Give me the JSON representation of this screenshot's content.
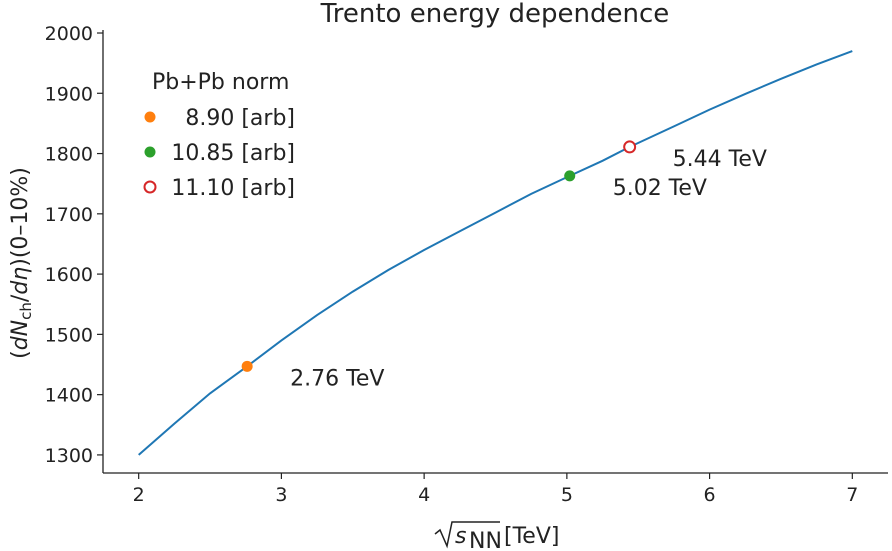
{
  "chart_data": {
    "type": "line",
    "title": "Trento energy dependence",
    "xlabel": "[TeV]",
    "xlabel_symbol": "s",
    "xlabel_subscript": "NN",
    "ylabel": "(dNch/dη)(0–10%)",
    "ylabel_parts": {
      "open": "(",
      "d1": "d",
      "N": "N",
      "sub": "ch",
      "slash": "/",
      "d2": "d",
      "eta": "η",
      "close": ")(0–10%)"
    },
    "xlim": [
      1.75,
      7.25
    ],
    "ylim": [
      1270,
      2005
    ],
    "xticks": [
      2,
      3,
      4,
      5,
      6,
      7
    ],
    "yticks": [
      1300,
      1400,
      1500,
      1600,
      1700,
      1800,
      1900,
      2000
    ],
    "series": [
      {
        "kind": "curve",
        "color": "#1f77b4",
        "x": [
          2.0,
          2.25,
          2.5,
          2.76,
          3.0,
          3.25,
          3.5,
          3.75,
          4.0,
          4.25,
          4.5,
          4.75,
          5.02,
          5.25,
          5.44,
          5.75,
          6.0,
          6.25,
          6.5,
          6.75,
          7.0
        ],
        "y": [
          1300,
          1352,
          1402,
          1447,
          1490,
          1532,
          1571,
          1607,
          1640,
          1671,
          1702,
          1733,
          1763,
          1788,
          1811,
          1845,
          1873,
          1899,
          1924,
          1948,
          1970
        ]
      }
    ],
    "points": [
      {
        "x": 2.76,
        "y": 1447,
        "color": "#ff7f0e",
        "filled": true,
        "annotation": "2.76 TeV"
      },
      {
        "x": 5.02,
        "y": 1763,
        "color": "#2ca02c",
        "filled": true,
        "annotation": "5.02 TeV"
      },
      {
        "x": 5.44,
        "y": 1811,
        "color": "#d62728",
        "filled": false,
        "annotation": "5.44 TeV"
      }
    ],
    "legend": {
      "title": "Pb+Pb norm",
      "placement": "top-left",
      "entries": [
        {
          "label": "8.90 [arb]",
          "color": "#ff7f0e",
          "filled": true
        },
        {
          "label": "10.85 [arb]",
          "color": "#2ca02c",
          "filled": true
        },
        {
          "label": "11.10 [arb]",
          "color": "#d62728",
          "filled": false
        }
      ]
    },
    "grid": false
  }
}
